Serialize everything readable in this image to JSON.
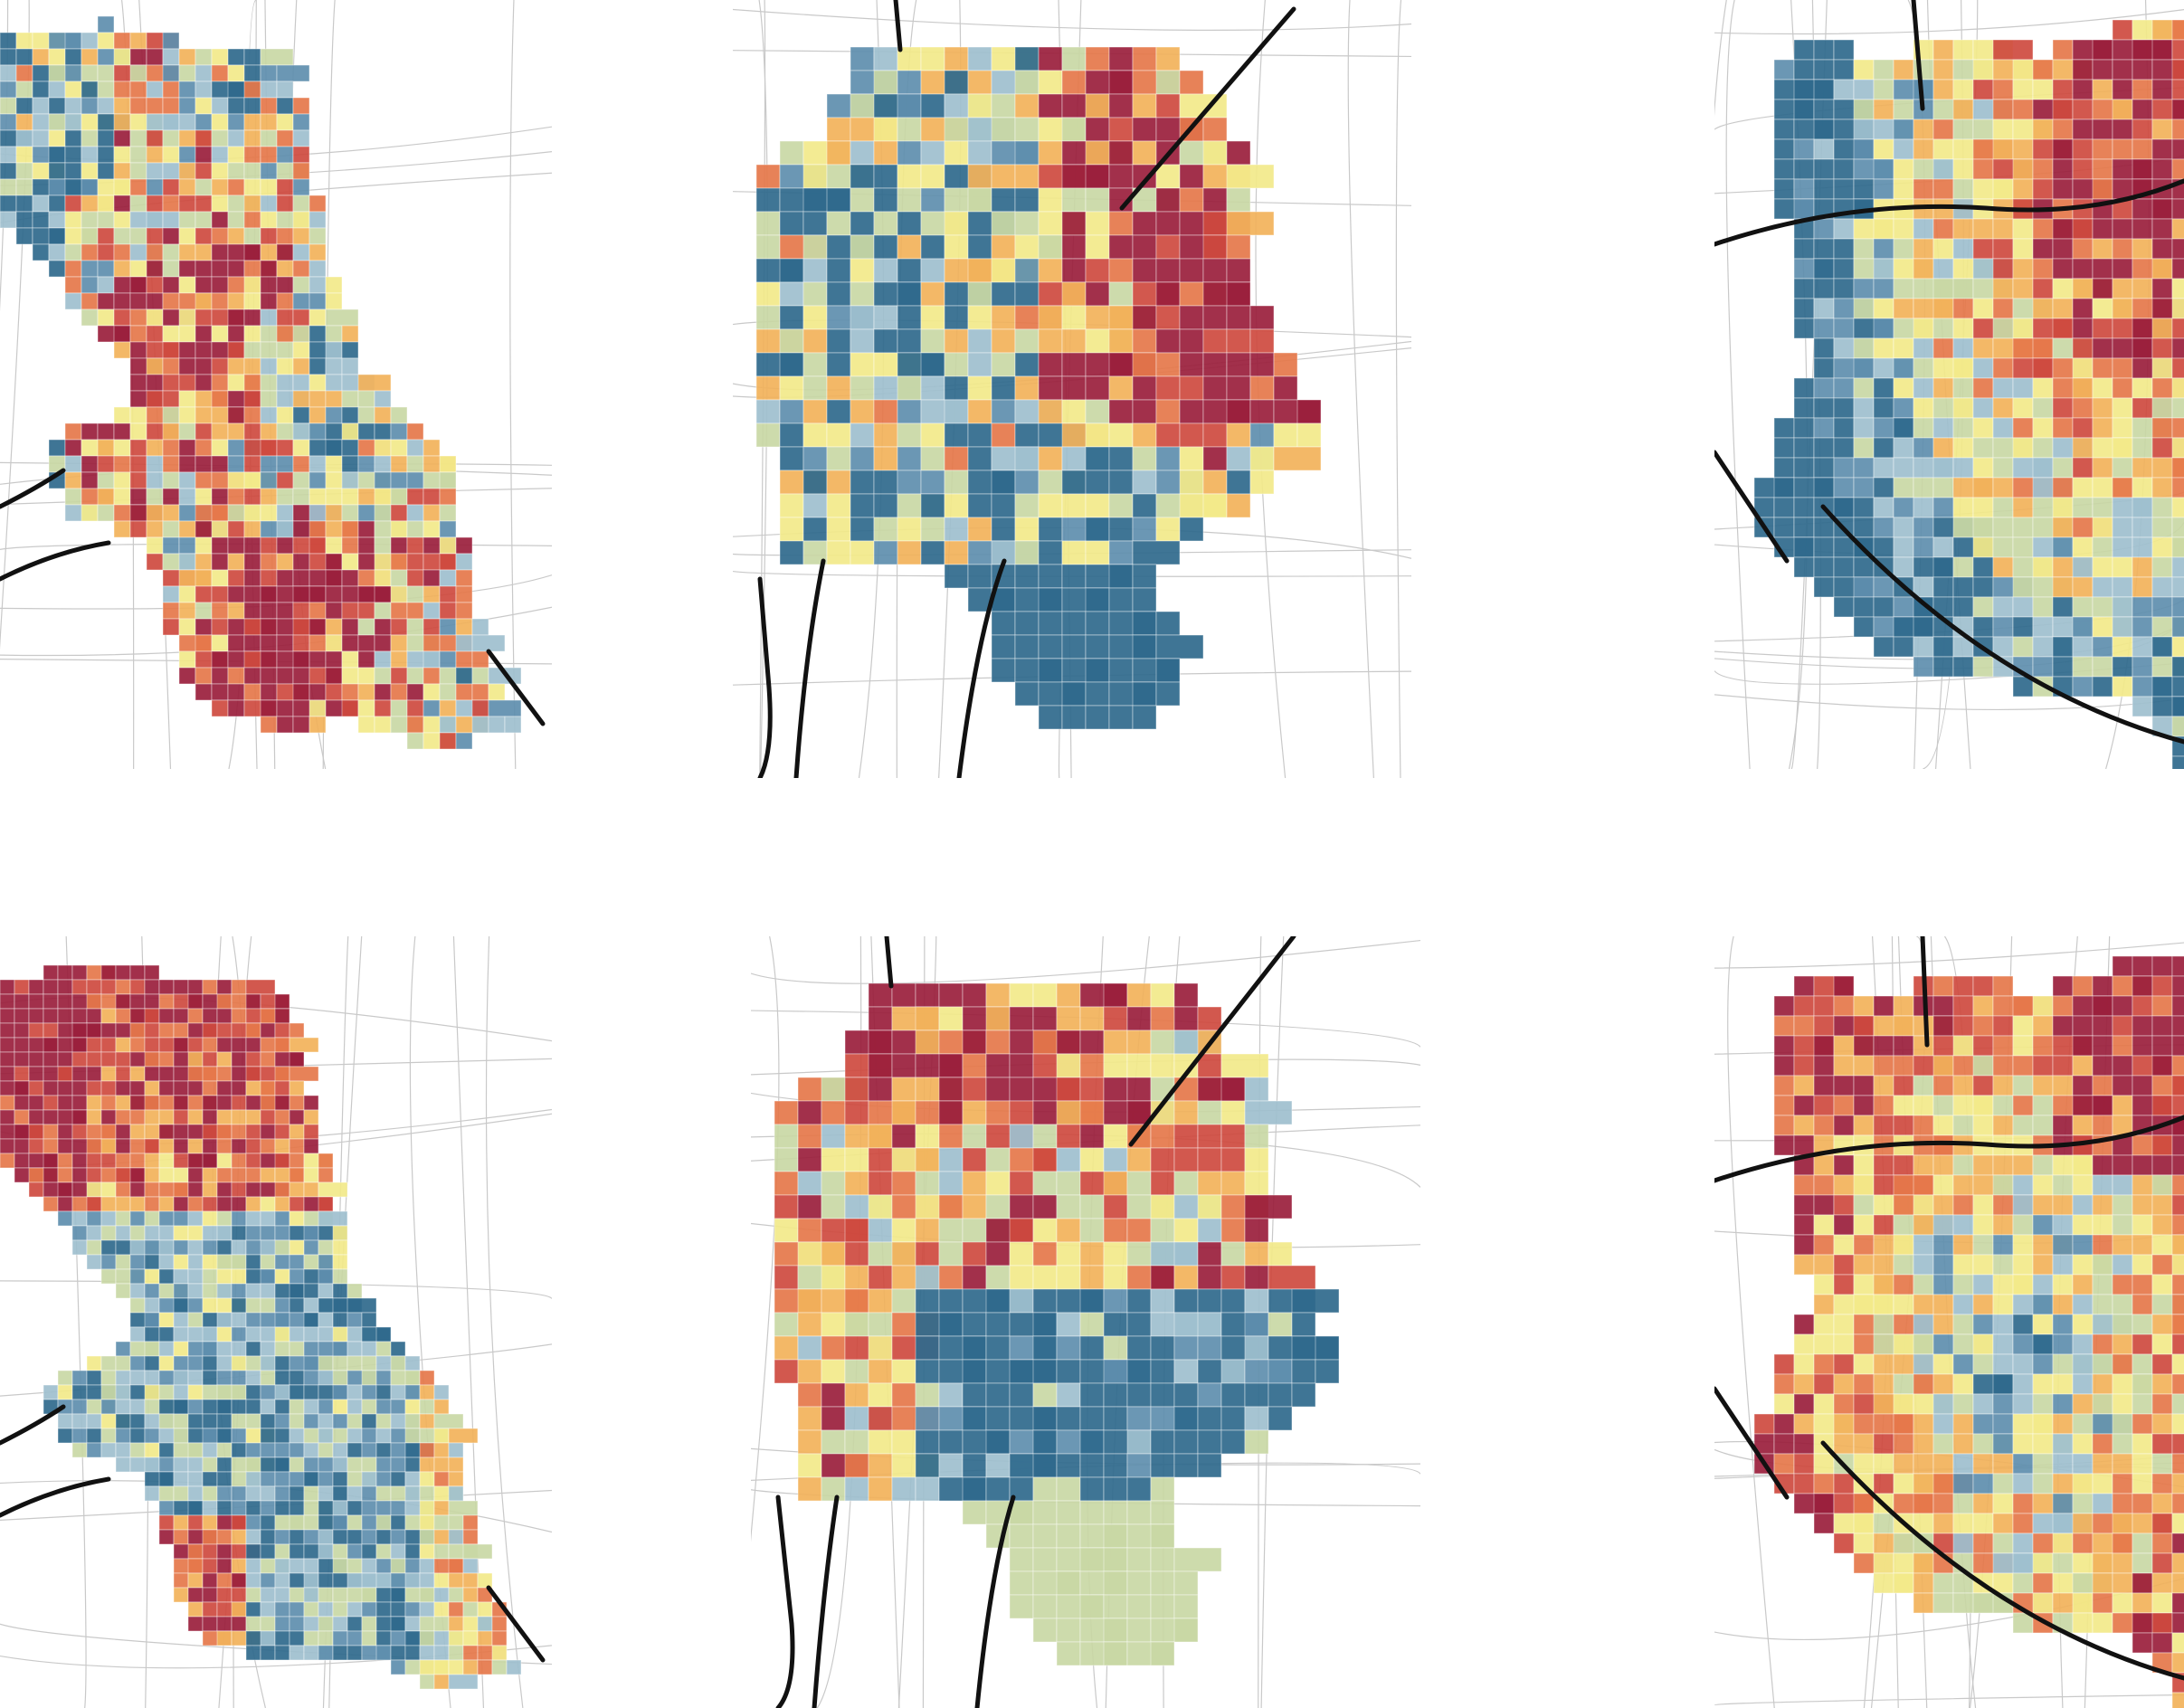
{
  "palette": {
    "dark_blue": "#2f6a8d",
    "mid_blue": "#5f8fae",
    "light_blue": "#9fc0cf",
    "sage": "#c9d8a5",
    "pale_yellow": "#f3ea8a",
    "light_orange": "#f2b25b",
    "orange": "#e6784a",
    "red": "#cf4a3f",
    "dark_red": "#9b1f3c",
    "road": "#111111",
    "street": "#c9c9c9",
    "background": "#ffffff"
  },
  "layout_grid": {
    "rows": 2,
    "cols": 3
  },
  "maps": [
    {
      "id": "map-chicago-top",
      "row": 1,
      "col": 1
    },
    {
      "id": "map-sf-top",
      "row": 1,
      "col": 2
    },
    {
      "id": "map-boston-top",
      "row": 1,
      "col": 3
    },
    {
      "id": "map-chicago-bottom",
      "row": 2,
      "col": 1
    },
    {
      "id": "map-sf-bottom",
      "row": 2,
      "col": 2
    },
    {
      "id": "map-boston-bottom",
      "row": 2,
      "col": 3
    }
  ]
}
